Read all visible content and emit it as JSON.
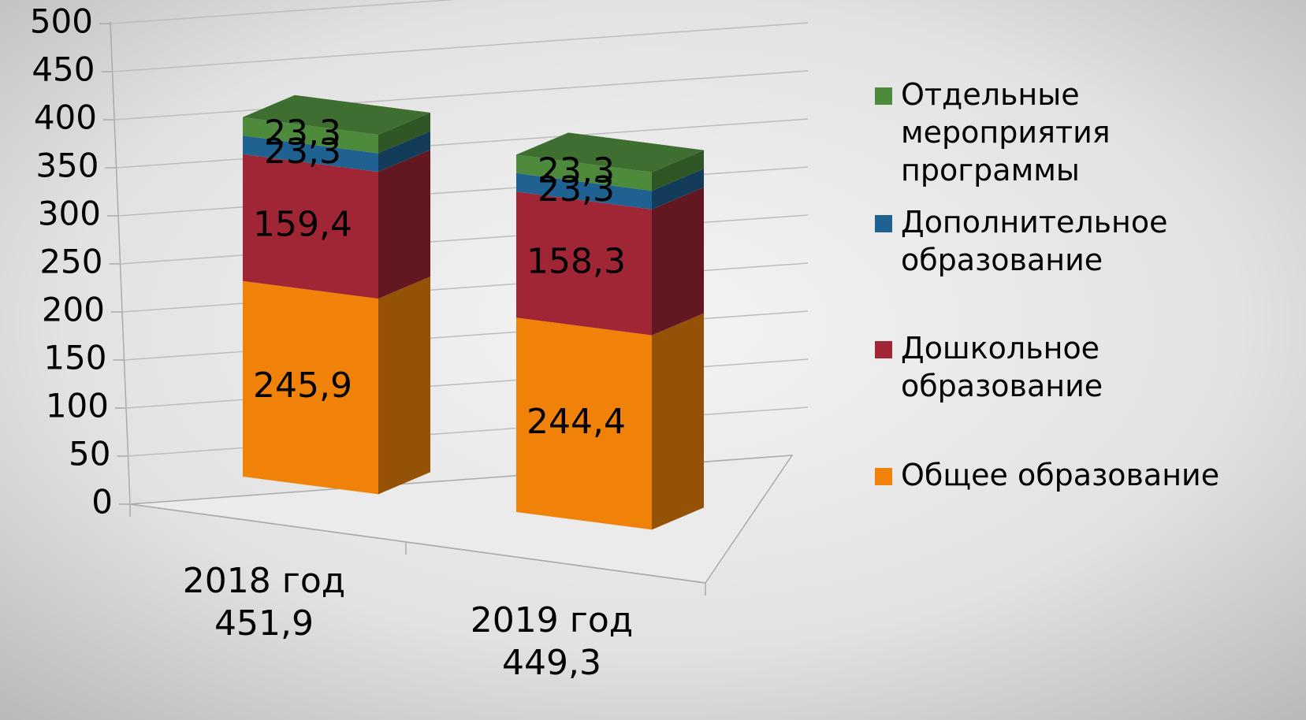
{
  "chart_data": {
    "type": "bar3d-stacked",
    "categories": [
      "2018 год",
      "2019 год"
    ],
    "totals": [
      451.9,
      449.3
    ],
    "total_labels": [
      "451,9",
      "449,3"
    ],
    "series": [
      {
        "name": "Общее образование",
        "color": "#f0820a",
        "values": [
          245.9,
          244.4
        ],
        "value_labels": [
          "245,9",
          "244,4"
        ]
      },
      {
        "name": "Дошкольное образование",
        "color": "#a02535",
        "values": [
          159.4,
          158.3
        ],
        "value_labels": [
          "159,4",
          "158,3"
        ]
      },
      {
        "name": "Дополнительное образование",
        "color": "#1f6191",
        "values": [
          23.3,
          23.3
        ],
        "value_labels": [
          "23,3",
          "23,3"
        ]
      },
      {
        "name": "Отдельные мероприятия программы",
        "color": "#4e8a3c",
        "values": [
          23.3,
          23.3
        ],
        "value_labels": [
          "23,3",
          "23,3"
        ]
      }
    ],
    "ylim": [
      0,
      500
    ],
    "yticks": [
      0,
      50,
      100,
      150,
      200,
      250,
      300,
      350,
      400,
      450,
      500
    ],
    "grid": true,
    "legend": "right"
  }
}
